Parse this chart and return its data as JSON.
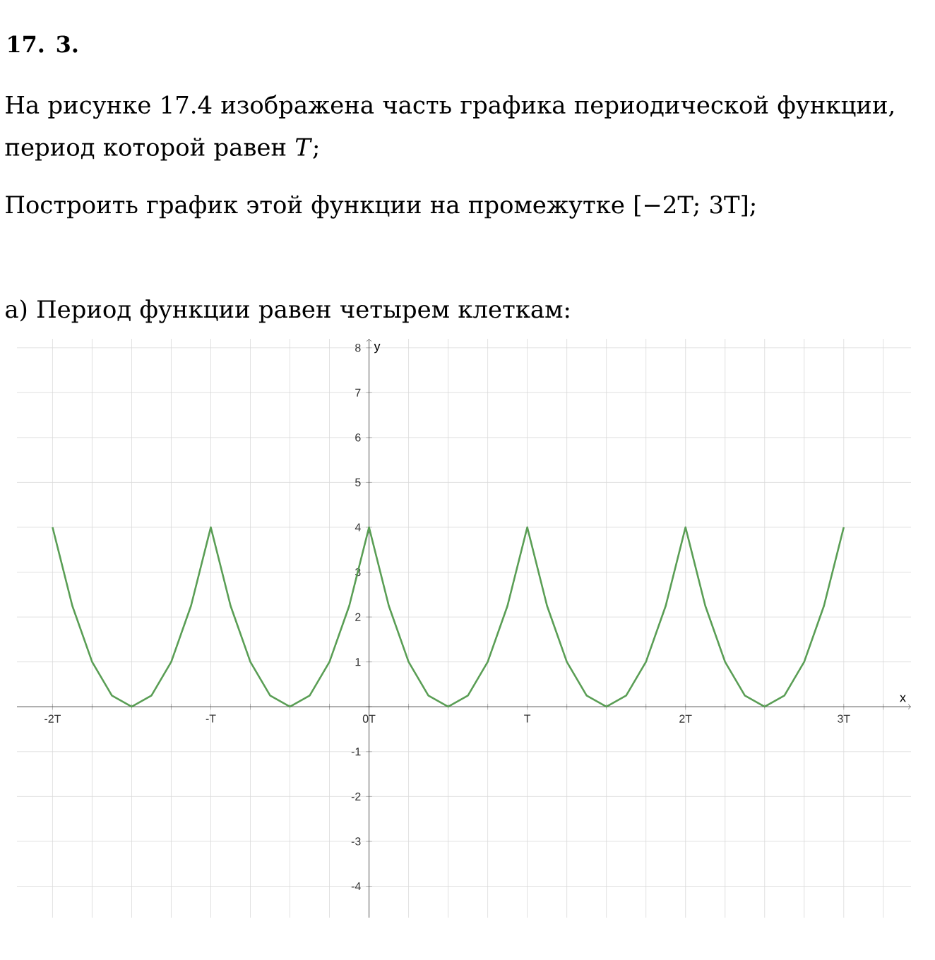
{
  "chart_data": {
    "type": "line",
    "title": "17. 3.",
    "annotations": [
      "На рисунке 17.4 изображена часть графика периодической функции, период которой равен *T*;",
      "Построить график этой функции на промежутке [−2T;  3T];",
      "а) Период функции равен четырем клеткам:"
    ],
    "xlabel": "x",
    "ylabel": "y",
    "categories": [
      "-2T",
      null,
      null,
      null,
      null,
      null,
      null,
      null,
      "-T",
      null,
      null,
      null,
      null,
      null,
      null,
      null,
      "0T",
      null,
      null,
      null,
      null,
      null,
      null,
      null,
      "T",
      null,
      null,
      null,
      null,
      null,
      null,
      null,
      "2T",
      null,
      null,
      null,
      null,
      null,
      null,
      null,
      "3T"
    ],
    "values": [
      4,
      2.25,
      1,
      0.25,
      0,
      0.25,
      1,
      2.25,
      4,
      2.25,
      1,
      0.25,
      0,
      0.25,
      1,
      2.25,
      4,
      2.25,
      1,
      0.25,
      0,
      0.25,
      1,
      2.25,
      4,
      2.25,
      1,
      0.25,
      0,
      0.25,
      1,
      2.25,
      4,
      2.25,
      1,
      0.25,
      0,
      0.25,
      1,
      2.25,
      4
    ],
    "color": "#5a9e55",
    "ylim": [
      -4.7,
      8.2
    ],
    "yticks": [
      -4,
      -3,
      -2,
      -1,
      {
        "value": 0,
        "label": null
      },
      1,
      2,
      3,
      4,
      5,
      6,
      7,
      8
    ],
    "grid": true,
    "marker": "none",
    "line_style": "solid"
  }
}
